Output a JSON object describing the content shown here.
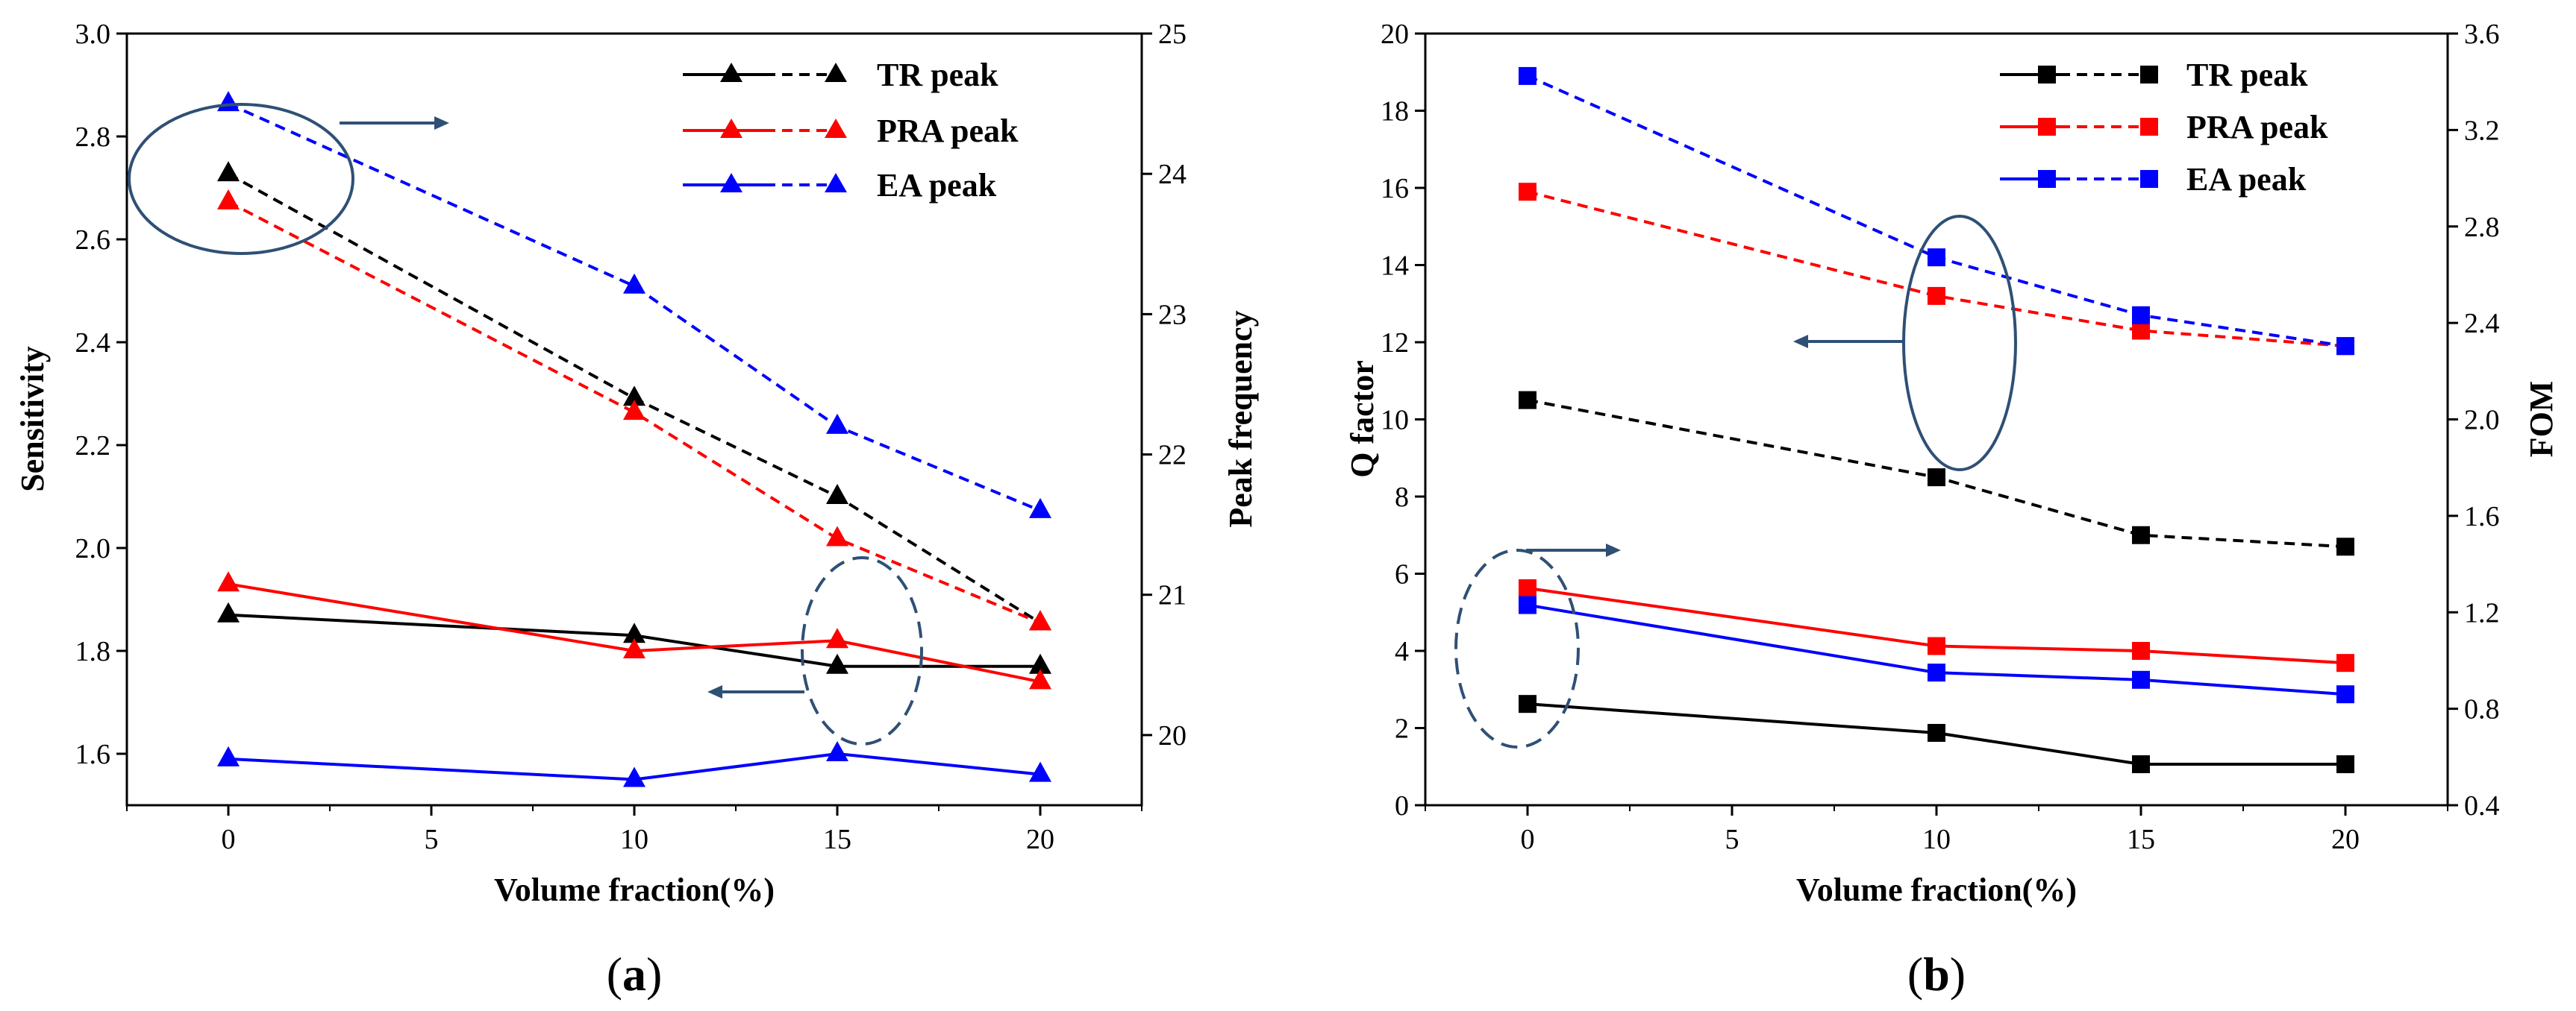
{
  "colors": {
    "black": "#000000",
    "red": "#ff0000",
    "blue": "#0000ff",
    "annotation": "#2f5075"
  },
  "legend": [
    "TR peak",
    "PRA peak",
    "EA peak"
  ],
  "chart_data": [
    {
      "id": "a",
      "type": "line",
      "panel_label": "a",
      "xlabel": "Volume fraction(%)",
      "ylabel_left": "Sensitivity",
      "ylabel_right": "Peak frequency",
      "x": [
        0,
        10,
        15,
        20
      ],
      "xlim": [
        -2.5,
        22.5
      ],
      "xticks": [
        0,
        5,
        10,
        15,
        20
      ],
      "ylim_left": [
        1.5,
        3.0
      ],
      "yticks_left": [
        "1.6",
        "1.8",
        "2.0",
        "2.2",
        "2.4",
        "2.6",
        "2.8",
        "3.0"
      ],
      "ylim_right": [
        19.5,
        25
      ],
      "yticks_right": [
        "20",
        "21",
        "22",
        "23",
        "24",
        "25"
      ],
      "marker": "triangle",
      "series": [
        {
          "name": "TR peak",
          "color": "black",
          "axis": "left",
          "style": "solid",
          "values": [
            1.87,
            1.83,
            1.77,
            1.77
          ]
        },
        {
          "name": "PRA peak",
          "color": "red",
          "axis": "left",
          "style": "solid",
          "values": [
            1.93,
            1.8,
            1.82,
            1.74
          ]
        },
        {
          "name": "EA peak",
          "color": "blue",
          "axis": "left",
          "style": "solid",
          "values": [
            1.59,
            1.55,
            1.6,
            1.56
          ]
        },
        {
          "name": "TR peak",
          "color": "black",
          "axis": "right",
          "style": "dashed",
          "values": [
            24.0,
            22.4,
            21.7,
            20.8
          ]
        },
        {
          "name": "PRA peak",
          "color": "red",
          "axis": "right",
          "style": "dashed",
          "values": [
            23.8,
            22.3,
            21.4,
            20.8
          ]
        },
        {
          "name": "EA peak",
          "color": "blue",
          "axis": "right",
          "style": "dashed",
          "values": [
            24.5,
            23.2,
            22.2,
            21.6
          ]
        }
      ]
    },
    {
      "id": "b",
      "type": "line",
      "panel_label": "b",
      "xlabel": "Volume fraction(%)",
      "ylabel_left": "Q factor",
      "ylabel_right": "FOM",
      "x": [
        0,
        10,
        15,
        20
      ],
      "xlim": [
        -2.5,
        22.5
      ],
      "xticks": [
        0,
        5,
        10,
        15,
        20
      ],
      "ylim_left": [
        0,
        20
      ],
      "yticks_left": [
        "0",
        "2",
        "4",
        "6",
        "8",
        "10",
        "12",
        "14",
        "16",
        "18",
        "20"
      ],
      "ylim_right": [
        0.4,
        3.6
      ],
      "yticks_right": [
        "0.4",
        "0.8",
        "1.2",
        "1.6",
        "2.0",
        "2.4",
        "2.8",
        "3.2",
        "3.6"
      ],
      "marker": "square",
      "series": [
        {
          "name": "TR peak",
          "color": "black",
          "axis": "left",
          "style": "dashed",
          "values": [
            10.5,
            8.5,
            7.0,
            6.7
          ]
        },
        {
          "name": "PRA peak",
          "color": "red",
          "axis": "left",
          "style": "dashed",
          "values": [
            15.9,
            13.2,
            12.3,
            11.9
          ]
        },
        {
          "name": "EA peak",
          "color": "blue",
          "axis": "left",
          "style": "dashed",
          "values": [
            18.9,
            14.2,
            12.7,
            11.9
          ]
        },
        {
          "name": "TR peak",
          "color": "black",
          "axis": "right",
          "style": "solid",
          "values": [
            0.82,
            0.7,
            0.57,
            0.57
          ]
        },
        {
          "name": "PRA peak",
          "color": "red",
          "axis": "right",
          "style": "solid",
          "values": [
            1.3,
            1.06,
            1.04,
            0.99
          ]
        },
        {
          "name": "EA peak",
          "color": "blue",
          "axis": "right",
          "style": "solid",
          "values": [
            1.23,
            0.95,
            0.92,
            0.86
          ]
        }
      ]
    }
  ]
}
